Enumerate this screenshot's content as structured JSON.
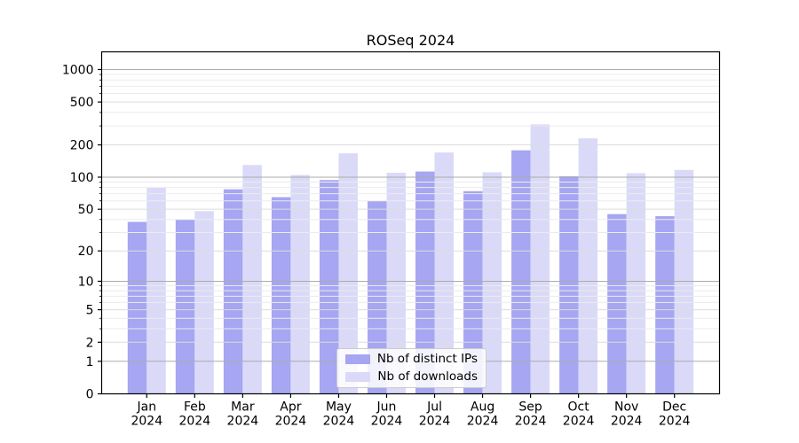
{
  "title": "ROSeq 2024",
  "chart_data": {
    "type": "bar",
    "title": "ROSeq 2024",
    "scale": "log1p",
    "categories": [
      "Jan",
      "Feb",
      "Mar",
      "Apr",
      "May",
      "Jun",
      "Jul",
      "Aug",
      "Sep",
      "Oct",
      "Nov",
      "Dec"
    ],
    "year_label": "2024",
    "series": [
      {
        "name": "Nb of distinct IPs",
        "color": "#a6a6f2",
        "values": [
          38,
          40,
          77,
          65,
          94,
          60,
          113,
          74,
          178,
          102,
          45,
          43
        ]
      },
      {
        "name": "Nb of downloads",
        "color": "#dadaf8",
        "values": [
          80,
          48,
          130,
          105,
          167,
          110,
          170,
          111,
          310,
          230,
          109,
          117
        ]
      }
    ],
    "yticks": [
      0,
      1,
      2,
      5,
      10,
      20,
      50,
      100,
      200,
      500,
      1000
    ],
    "ylim": [
      0,
      1458
    ],
    "xlabel": "",
    "ylabel": "",
    "grid": true,
    "legend_position": "lower center",
    "colors": {
      "grid_major": "#ababab",
      "grid_labeled": "#dcdcdc",
      "grid_minor": "#ebebeb",
      "axis": "#000000",
      "background": "#ffffff"
    }
  }
}
